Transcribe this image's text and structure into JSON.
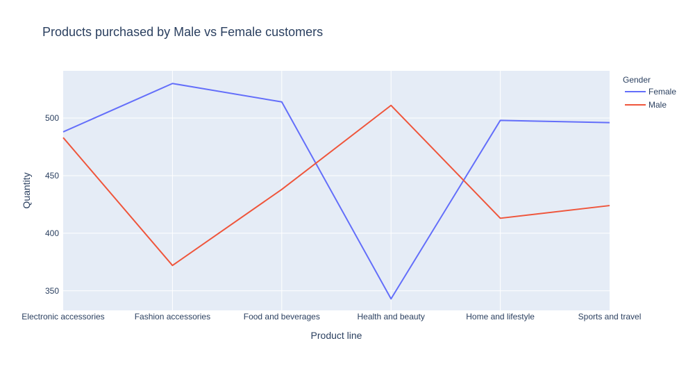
{
  "chart_data": {
    "type": "line",
    "title": "Products purchased by Male vs Female customers",
    "xlabel": "Product line",
    "ylabel": "Quantity",
    "categories": [
      "Electronic accessories",
      "Fashion accessories",
      "Food and beverages",
      "Health and beauty",
      "Home and lifestyle",
      "Sports and travel"
    ],
    "ylim": [
      333,
      541
    ],
    "yticks": [
      350,
      400,
      450,
      500
    ],
    "grid": true,
    "legend": {
      "title": "Gender",
      "position": "top-right"
    },
    "series": [
      {
        "name": "Female",
        "color": "#636efa",
        "values": [
          488,
          530,
          514,
          343,
          498,
          496
        ]
      },
      {
        "name": "Male",
        "color": "#ef553b",
        "values": [
          483,
          372,
          438,
          511,
          413,
          424
        ]
      }
    ]
  }
}
